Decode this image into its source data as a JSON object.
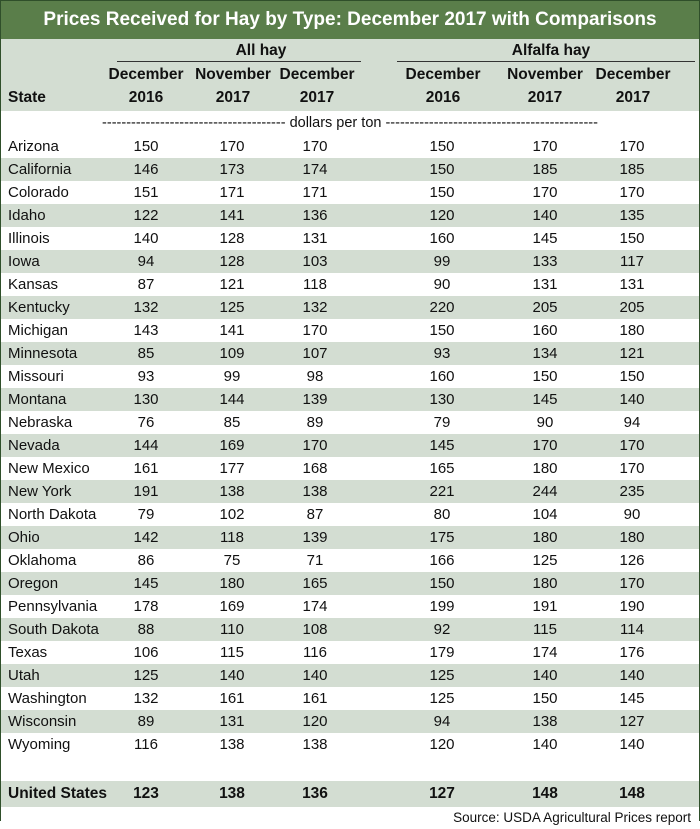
{
  "title": "Prices Received for Hay by Type: December 2017 with Comparisons",
  "header": {
    "state_label": "State",
    "group_all": "All hay",
    "group_alfalfa": "Alfalfa hay",
    "columns": [
      {
        "month": "December",
        "year": "2016"
      },
      {
        "month": "November",
        "year": "2017"
      },
      {
        "month": "December",
        "year": "2017"
      },
      {
        "month": "December",
        "year": "2016"
      },
      {
        "month": "November",
        "year": "2017"
      },
      {
        "month": "December",
        "year": "2017"
      }
    ]
  },
  "unit_label": "-------------------------------------- dollars per ton --------------------------------------------",
  "rows": [
    {
      "state": "Arizona",
      "values": [
        "150",
        "170",
        "170",
        "150",
        "170",
        "170"
      ]
    },
    {
      "state": "California",
      "values": [
        "146",
        "173",
        "174",
        "150",
        "185",
        "185"
      ]
    },
    {
      "state": "Colorado",
      "values": [
        "151",
        "171",
        "171",
        "150",
        "170",
        "170"
      ]
    },
    {
      "state": "Idaho",
      "values": [
        "122",
        "141",
        "136",
        "120",
        "140",
        "135"
      ]
    },
    {
      "state": "Illinois",
      "values": [
        "140",
        "128",
        "131",
        "160",
        "145",
        "150"
      ]
    },
    {
      "state": "Iowa",
      "values": [
        "94",
        "128",
        "103",
        "99",
        "133",
        "117"
      ]
    },
    {
      "state": "Kansas",
      "values": [
        "87",
        "121",
        "118",
        "90",
        "131",
        "131"
      ]
    },
    {
      "state": "Kentucky",
      "values": [
        "132",
        "125",
        "132",
        "220",
        "205",
        "205"
      ]
    },
    {
      "state": "Michigan",
      "values": [
        "143",
        "141",
        "170",
        "150",
        "160",
        "180"
      ]
    },
    {
      "state": "Minnesota",
      "values": [
        "85",
        "109",
        "107",
        "93",
        "134",
        "121"
      ]
    },
    {
      "state": "Missouri",
      "values": [
        "93",
        "99",
        "98",
        "160",
        "150",
        "150"
      ]
    },
    {
      "state": "Montana",
      "values": [
        "130",
        "144",
        "139",
        "130",
        "145",
        "140"
      ]
    },
    {
      "state": "Nebraska",
      "values": [
        "76",
        "85",
        "89",
        "79",
        "90",
        "94"
      ]
    },
    {
      "state": "Nevada",
      "values": [
        "144",
        "169",
        "170",
        "145",
        "170",
        "170"
      ]
    },
    {
      "state": "New Mexico",
      "values": [
        "161",
        "177",
        "168",
        "165",
        "180",
        "170"
      ]
    },
    {
      "state": "New York",
      "values": [
        "191",
        "138",
        "138",
        "221",
        "244",
        "235"
      ]
    },
    {
      "state": "North Dakota",
      "values": [
        "79",
        "102",
        "87",
        "80",
        "104",
        "90"
      ]
    },
    {
      "state": "Ohio",
      "values": [
        "142",
        "118",
        "139",
        "175",
        "180",
        "180"
      ]
    },
    {
      "state": "Oklahoma",
      "values": [
        "86",
        "75",
        "71",
        "166",
        "125",
        "126"
      ]
    },
    {
      "state": "Oregon",
      "values": [
        "145",
        "180",
        "165",
        "150",
        "180",
        "170"
      ]
    },
    {
      "state": "Pennsylvania",
      "values": [
        "178",
        "169",
        "174",
        "199",
        "191",
        "190"
      ]
    },
    {
      "state": "South Dakota",
      "values": [
        "88",
        "110",
        "108",
        "92",
        "115",
        "114"
      ]
    },
    {
      "state": "Texas",
      "values": [
        "106",
        "115",
        "116",
        "179",
        "174",
        "176"
      ]
    },
    {
      "state": "Utah",
      "values": [
        "125",
        "140",
        "140",
        "125",
        "140",
        "140"
      ]
    },
    {
      "state": "Washington",
      "values": [
        "132",
        "161",
        "161",
        "125",
        "150",
        "145"
      ]
    },
    {
      "state": "Wisconsin",
      "values": [
        "89",
        "131",
        "120",
        "94",
        "138",
        "127"
      ]
    },
    {
      "state": "Wyoming",
      "values": [
        "116",
        "138",
        "138",
        "120",
        "140",
        "140"
      ]
    }
  ],
  "total": {
    "state": "United States",
    "values": [
      "123",
      "138",
      "136",
      "127",
      "148",
      "148"
    ]
  },
  "source": "Source: USDA Agricultural Prices report",
  "colors": {
    "title_bg": "#5a7e4a",
    "band": "#d3ddd2",
    "title_text": "#ffffff"
  }
}
